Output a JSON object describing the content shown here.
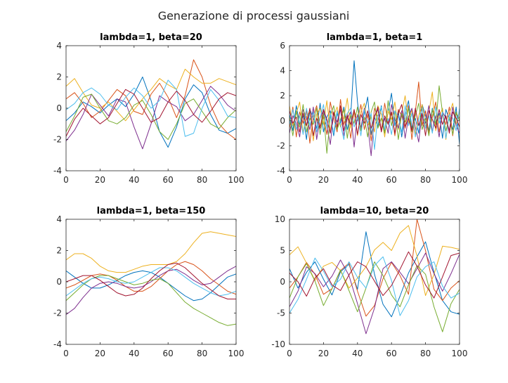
{
  "figure": {
    "suptitle": "Generazione di processi gaussiani",
    "palette": [
      "#0072bd",
      "#d95319",
      "#edb120",
      "#7e2f8e",
      "#77ac30",
      "#4dbeee",
      "#a2142f"
    ],
    "grid": false
  },
  "chart_data": [
    {
      "type": "line",
      "title": "lambda=1, beta=20",
      "xlabel": "",
      "ylabel": "",
      "xlim": [
        0,
        100
      ],
      "ylim": [
        -4,
        4
      ],
      "xticks": [
        0,
        20,
        40,
        60,
        80,
        100
      ],
      "yticks": [
        -4,
        -2,
        0,
        2,
        4
      ],
      "x": [
        0,
        5,
        10,
        15,
        20,
        25,
        30,
        35,
        40,
        45,
        50,
        55,
        60,
        65,
        70,
        75,
        80,
        85,
        90,
        95,
        100
      ],
      "series": [
        {
          "color": "#0072bd",
          "values": [
            -0.8,
            -0.3,
            0.4,
            0.1,
            -0.3,
            0.2,
            0.6,
            0.1,
            0.9,
            2.0,
            0.5,
            -1.5,
            -2.5,
            -1.2,
            0.6,
            1.5,
            1.0,
            -0.4,
            -1.4,
            -1.6,
            -1.3
          ]
        },
        {
          "color": "#d95319",
          "values": [
            0.6,
            1.0,
            0.3,
            -0.6,
            -0.2,
            0.5,
            1.2,
            0.8,
            -0.2,
            -0.4,
            0.9,
            1.6,
            0.7,
            -0.6,
            0.8,
            3.1,
            2.0,
            0.2,
            -1.0,
            -1.6,
            -2.0
          ]
        },
        {
          "color": "#edb120",
          "values": [
            1.4,
            1.9,
            1.0,
            0.2,
            0.0,
            0.4,
            -0.2,
            -0.8,
            -0.1,
            0.6,
            1.2,
            1.9,
            1.5,
            1.2,
            2.5,
            2.0,
            1.6,
            1.6,
            1.9,
            1.7,
            1.5
          ]
        },
        {
          "color": "#7e2f8e",
          "values": [
            -2.1,
            -1.4,
            -0.4,
            0.9,
            0.2,
            -0.5,
            0.6,
            0.4,
            -1.2,
            -2.6,
            -1.0,
            0.8,
            0.4,
            0.1,
            -0.8,
            -0.4,
            0.5,
            1.4,
            0.9,
            0.2,
            -0.2
          ]
        },
        {
          "color": "#77ac30",
          "values": [
            -1.5,
            -0.5,
            0.7,
            0.9,
            0.0,
            -0.8,
            -1.0,
            -0.6,
            0.2,
            0.5,
            -0.4,
            -1.5,
            -2.0,
            -1.0,
            0.3,
            0.6,
            -0.2,
            -1.0,
            -1.3,
            -0.6,
            -0.1
          ]
        },
        {
          "color": "#4dbeee",
          "values": [
            -0.1,
            0.3,
            1.0,
            1.3,
            0.9,
            0.2,
            -0.1,
            0.7,
            1.3,
            0.8,
            0.0,
            0.5,
            1.8,
            1.2,
            -1.8,
            -1.6,
            0.0,
            1.2,
            0.5,
            -0.5,
            -0.6
          ]
        },
        {
          "color": "#a2142f",
          "values": [
            -1.8,
            -0.7,
            0.0,
            -0.5,
            -1.0,
            -0.6,
            0.3,
            1.2,
            0.9,
            0.0,
            -0.9,
            -0.6,
            0.4,
            1.1,
            0.5,
            -0.4,
            -0.9,
            -0.2,
            0.6,
            1.0,
            0.8
          ]
        }
      ]
    },
    {
      "type": "line",
      "title": "lambda=1, beta=1",
      "xlabel": "",
      "ylabel": "",
      "xlim": [
        0,
        100
      ],
      "ylim": [
        -4,
        6
      ],
      "xticks": [
        0,
        20,
        40,
        60,
        80,
        100
      ],
      "yticks": [
        -4,
        -2,
        0,
        2,
        4,
        6
      ],
      "x": [
        0,
        2,
        4,
        6,
        8,
        10,
        12,
        14,
        16,
        18,
        20,
        22,
        24,
        26,
        28,
        30,
        32,
        34,
        36,
        38,
        40,
        42,
        44,
        46,
        48,
        50,
        52,
        54,
        56,
        58,
        60,
        62,
        64,
        66,
        68,
        70,
        72,
        74,
        76,
        78,
        80,
        82,
        84,
        86,
        88,
        90,
        92,
        94,
        96,
        98,
        100
      ],
      "series": [
        {
          "color": "#0072bd",
          "values": [
            0.5,
            -0.8,
            1.2,
            -0.3,
            0.4,
            -1.5,
            0.9,
            0.2,
            -0.6,
            1.4,
            -0.9,
            0.3,
            0.8,
            -1.2,
            0.6,
            -0.2,
            1.1,
            -0.7,
            0.4,
            4.8,
            1.5,
            -0.8,
            0.6,
            1.9,
            -1.1,
            0.3,
            -0.5,
            1.2,
            -0.9,
            0.7,
            2.2,
            -0.4,
            0.8,
            -1.3,
            0.5,
            1.6,
            -0.6,
            0.2,
            -1.0,
            1.3,
            0.4,
            -0.8,
            1.0,
            -0.3,
            0.6,
            -1.4,
            0.9,
            0.1,
            -0.7,
            1.1,
            -1.9
          ]
        },
        {
          "color": "#d95319",
          "values": [
            -0.6,
            1.1,
            -1.3,
            0.7,
            -0.2,
            0.9,
            -1.8,
            0.4,
            1.2,
            -0.5,
            0.3,
            -1.1,
            1.5,
            0.2,
            -0.9,
            1.7,
            -0.3,
            0.6,
            -1.4,
            0.8,
            0.0,
            1.3,
            -0.7,
            0.5,
            -1.6,
            1.0,
            0.3,
            -0.8,
            1.4,
            -0.2,
            0.6,
            -1.2,
            0.9,
            0.4,
            -0.6,
            1.2,
            -1.5,
            0.7,
            3.1,
            -0.4,
            0.8,
            -1.0,
            0.3,
            1.5,
            -0.9,
            0.5,
            -0.3,
            1.1,
            -1.2,
            0.6,
            0.2
          ]
        },
        {
          "color": "#edb120",
          "values": [
            1.2,
            -0.4,
            0.6,
            1.5,
            -1.0,
            0.3,
            0.8,
            -1.6,
            0.5,
            1.0,
            -0.3,
            1.6,
            -0.8,
            0.4,
            1.1,
            -0.5,
            0.2,
            1.8,
            -0.6,
            0.9,
            -1.2,
            0.7,
            1.4,
            -0.4,
            0.3,
            -0.9,
            1.2,
            0.5,
            -1.3,
            0.8,
            0.1,
            1.5,
            -0.7,
            0.6,
            2.0,
            -0.2,
            0.9,
            -1.1,
            0.4,
            1.3,
            -0.5,
            0.7,
            2.3,
            -0.8,
            0.3,
            1.0,
            -1.5,
            0.6,
            1.4,
            -0.3,
            0.8
          ]
        },
        {
          "color": "#7e2f8e",
          "values": [
            -1.0,
            0.4,
            -0.2,
            -1.3,
            0.9,
            0.2,
            -0.7,
            1.1,
            -1.5,
            0.3,
            0.8,
            -0.4,
            -1.9,
            0.6,
            -0.1,
            0.9,
            -1.2,
            0.2,
            0.7,
            -2.1,
            0.5,
            -0.6,
            1.0,
            -0.3,
            -2.8,
            0.4,
            0.9,
            -0.8,
            0.2,
            -1.0,
            1.3,
            0.1,
            -0.6,
            0.8,
            -1.4,
            0.3,
            1.0,
            -0.5,
            -1.7,
            0.6,
            -0.2,
            1.2,
            -0.9,
            0.4,
            -1.3,
            0.7,
            0.2,
            -0.8,
            1.1,
            -0.4,
            -1.0
          ]
        },
        {
          "color": "#77ac30",
          "values": [
            0.3,
            -1.2,
            0.8,
            -0.5,
            1.3,
            -0.9,
            0.2,
            -0.3,
            1.0,
            -1.1,
            0.6,
            -2.6,
            0.4,
            1.2,
            -0.7,
            0.1,
            0.9,
            -1.4,
            0.5,
            -0.2,
            1.1,
            -0.8,
            0.3,
            -1.3,
            0.7,
            1.5,
            -0.6,
            0.2,
            -1.0,
            1.6,
            -0.4,
            0.8,
            -1.5,
            0.6,
            -0.1,
            1.0,
            -0.9,
            0.4,
            1.4,
            -0.7,
            0.2,
            -1.2,
            0.9,
            -0.3,
            2.8,
            0.6,
            -0.8,
            0.3,
            -1.1,
            0.7,
            0.0
          ]
        },
        {
          "color": "#4dbeee",
          "values": [
            -0.3,
            0.9,
            -0.7,
            0.4,
            -1.1,
            1.0,
            -0.4,
            0.7,
            -0.9,
            0.2,
            1.3,
            -0.6,
            0.5,
            -1.0,
            0.8,
            -0.3,
            -1.5,
            0.6,
            1.0,
            -0.5,
            0.3,
            -1.2,
            0.9,
            -0.2,
            0.6,
            -2.3,
            0.4,
            1.1,
            -0.7,
            0.2,
            -1.1,
            0.8,
            0.3,
            -0.9,
            1.2,
            -0.4,
            0.6,
            -1.3,
            0.1,
            0.9,
            -0.6,
            0.4,
            -1.0,
            1.1,
            -0.2,
            0.7,
            -1.4,
            0.5,
            0.2,
            -0.8,
            1.0
          ]
        },
        {
          "color": "#a2142f",
          "values": [
            0.8,
            -0.2,
            0.3,
            -0.9,
            0.6,
            -0.4,
            1.0,
            -1.2,
            0.2,
            -0.6,
            0.9,
            0.1,
            -1.0,
            0.7,
            -0.5,
            1.2,
            -0.8,
            0.4,
            -0.3,
            0.9,
            -1.1,
            0.5,
            -0.2,
            0.8,
            -0.6,
            0.3,
            1.1,
            -0.9,
            0.4,
            -0.3,
            0.7,
            -1.0,
            0.6,
            1.3,
            -0.5,
            0.2,
            -0.8,
            1.0,
            -0.4,
            0.5,
            -1.2,
            0.8,
            0.1,
            -0.6,
            0.9,
            -0.3,
            0.4,
            -1.0,
            0.7,
            0.2,
            -0.5
          ]
        }
      ]
    },
    {
      "type": "line",
      "title": "lambda=1, beta=150",
      "xlabel": "",
      "ylabel": "",
      "xlim": [
        0,
        100
      ],
      "ylim": [
        -4,
        4
      ],
      "xticks": [
        0,
        20,
        40,
        60,
        80,
        100
      ],
      "yticks": [
        -4,
        -2,
        0,
        2,
        4
      ],
      "x": [
        0,
        5,
        10,
        15,
        20,
        25,
        30,
        35,
        40,
        45,
        50,
        55,
        60,
        65,
        70,
        75,
        80,
        85,
        90,
        95,
        100
      ],
      "series": [
        {
          "color": "#0072bd",
          "values": [
            0.7,
            0.3,
            -0.1,
            -0.4,
            -0.4,
            -0.2,
            0.1,
            0.4,
            0.6,
            0.7,
            0.6,
            0.3,
            -0.1,
            -0.5,
            -0.9,
            -1.2,
            -1.1,
            -0.7,
            -0.2,
            0.3,
            0.5
          ]
        },
        {
          "color": "#d95319",
          "values": [
            -0.4,
            -0.2,
            0.1,
            0.4,
            0.5,
            0.4,
            0.1,
            -0.3,
            -0.6,
            -0.6,
            -0.3,
            0.2,
            0.7,
            1.1,
            1.3,
            1.1,
            0.7,
            0.2,
            -0.2,
            -0.6,
            -0.8
          ]
        },
        {
          "color": "#edb120",
          "values": [
            1.4,
            1.8,
            1.8,
            1.5,
            1.0,
            0.7,
            0.6,
            0.6,
            0.8,
            1.0,
            1.1,
            1.1,
            1.1,
            1.3,
            1.8,
            2.5,
            3.1,
            3.2,
            3.1,
            3.0,
            2.9
          ]
        },
        {
          "color": "#7e2f8e",
          "values": [
            -2.1,
            -1.7,
            -1.0,
            -0.4,
            -0.1,
            0.0,
            -0.1,
            -0.3,
            -0.4,
            -0.3,
            0.0,
            0.4,
            0.7,
            0.8,
            0.5,
            0.1,
            -0.2,
            -0.1,
            0.3,
            0.7,
            1.0
          ]
        },
        {
          "color": "#77ac30",
          "values": [
            -1.2,
            -0.7,
            -0.2,
            0.2,
            0.4,
            0.4,
            0.2,
            0.0,
            -0.2,
            -0.1,
            0.1,
            0.2,
            -0.1,
            -0.7,
            -1.3,
            -1.7,
            -2.0,
            -2.3,
            -2.6,
            -2.8,
            -2.7
          ]
        },
        {
          "color": "#4dbeee",
          "values": [
            -0.9,
            -0.5,
            -0.1,
            0.2,
            0.3,
            0.2,
            0.0,
            -0.1,
            0.0,
            0.3,
            0.6,
            0.9,
            0.9,
            0.7,
            0.3,
            -0.1,
            -0.4,
            -0.7,
            -0.9,
            -0.8,
            -0.6
          ]
        },
        {
          "color": "#a2142f",
          "values": [
            0.0,
            0.2,
            0.4,
            0.4,
            0.1,
            -0.3,
            -0.7,
            -0.9,
            -0.8,
            -0.4,
            0.2,
            0.7,
            1.1,
            1.2,
            0.9,
            0.4,
            -0.1,
            -0.5,
            -0.9,
            -1.1,
            -1.1
          ]
        }
      ]
    },
    {
      "type": "line",
      "title": "lambda=10, beta=20",
      "xlabel": "",
      "ylabel": "",
      "xlim": [
        0,
        100
      ],
      "ylim": [
        -10,
        10
      ],
      "xticks": [
        0,
        20,
        40,
        60,
        80,
        100
      ],
      "yticks": [
        -10,
        -5,
        0,
        5,
        10
      ],
      "x": [
        0,
        5,
        10,
        15,
        20,
        25,
        30,
        35,
        40,
        45,
        50,
        55,
        60,
        65,
        70,
        75,
        80,
        85,
        90,
        95,
        100
      ],
      "series": [
        {
          "color": "#0072bd",
          "values": [
            2.1,
            -1.0,
            1.5,
            3.2,
            0.4,
            -2.1,
            1.6,
            2.8,
            -1.2,
            8.0,
            1.2,
            -3.6,
            -5.6,
            -2.3,
            1.4,
            4.0,
            6.4,
            1.5,
            -3.0,
            -4.8,
            -5.2
          ]
        },
        {
          "color": "#d95319",
          "values": [
            -1.0,
            0.8,
            3.1,
            1.2,
            -2.0,
            -1.1,
            1.8,
            3.0,
            -1.5,
            -5.5,
            -3.8,
            0.5,
            3.1,
            1.0,
            -2.0,
            10.0,
            5.0,
            -1.2,
            -3.0,
            -1.0,
            0.2
          ]
        },
        {
          "color": "#edb120",
          "values": [
            4.3,
            5.6,
            3.0,
            0.2,
            2.5,
            3.1,
            1.8,
            -1.0,
            0.6,
            2.4,
            5.1,
            6.3,
            5.0,
            7.8,
            9.0,
            4.1,
            -2.2,
            1.2,
            5.7,
            5.5,
            5.2
          ]
        },
        {
          "color": "#7e2f8e",
          "values": [
            -4.0,
            -1.5,
            2.4,
            1.3,
            -0.8,
            0.9,
            3.5,
            1.0,
            -3.5,
            -8.3,
            -4.2,
            2.1,
            3.2,
            1.5,
            -0.3,
            2.1,
            4.6,
            1.3,
            -1.5,
            1.3,
            4.4
          ]
        },
        {
          "color": "#77ac30",
          "values": [
            -2.6,
            0.8,
            2.9,
            0.1,
            -3.8,
            -1.1,
            1.9,
            -1.4,
            -4.8,
            -1.0,
            3.2,
            1.0,
            -2.1,
            -4.0,
            -0.5,
            2.6,
            1.2,
            -4.0,
            -8.0,
            -3.5,
            -1.2
          ]
        },
        {
          "color": "#4dbeee",
          "values": [
            -5.0,
            -2.8,
            0.4,
            3.8,
            1.7,
            -0.8,
            0.4,
            3.2,
            0.7,
            -1.0,
            2.6,
            4.0,
            0.2,
            -5.4,
            -3.0,
            0.8,
            2.4,
            3.2,
            -0.7,
            -2.6,
            -1.8
          ]
        },
        {
          "color": "#a2142f",
          "values": [
            1.4,
            0.0,
            -2.3,
            0.6,
            2.1,
            -0.5,
            -1.4,
            1.1,
            3.2,
            2.4,
            0.1,
            -2.2,
            -0.6,
            2.0,
            4.8,
            2.5,
            -0.5,
            -2.6,
            0.8,
            4.2,
            4.6
          ]
        }
      ]
    }
  ]
}
